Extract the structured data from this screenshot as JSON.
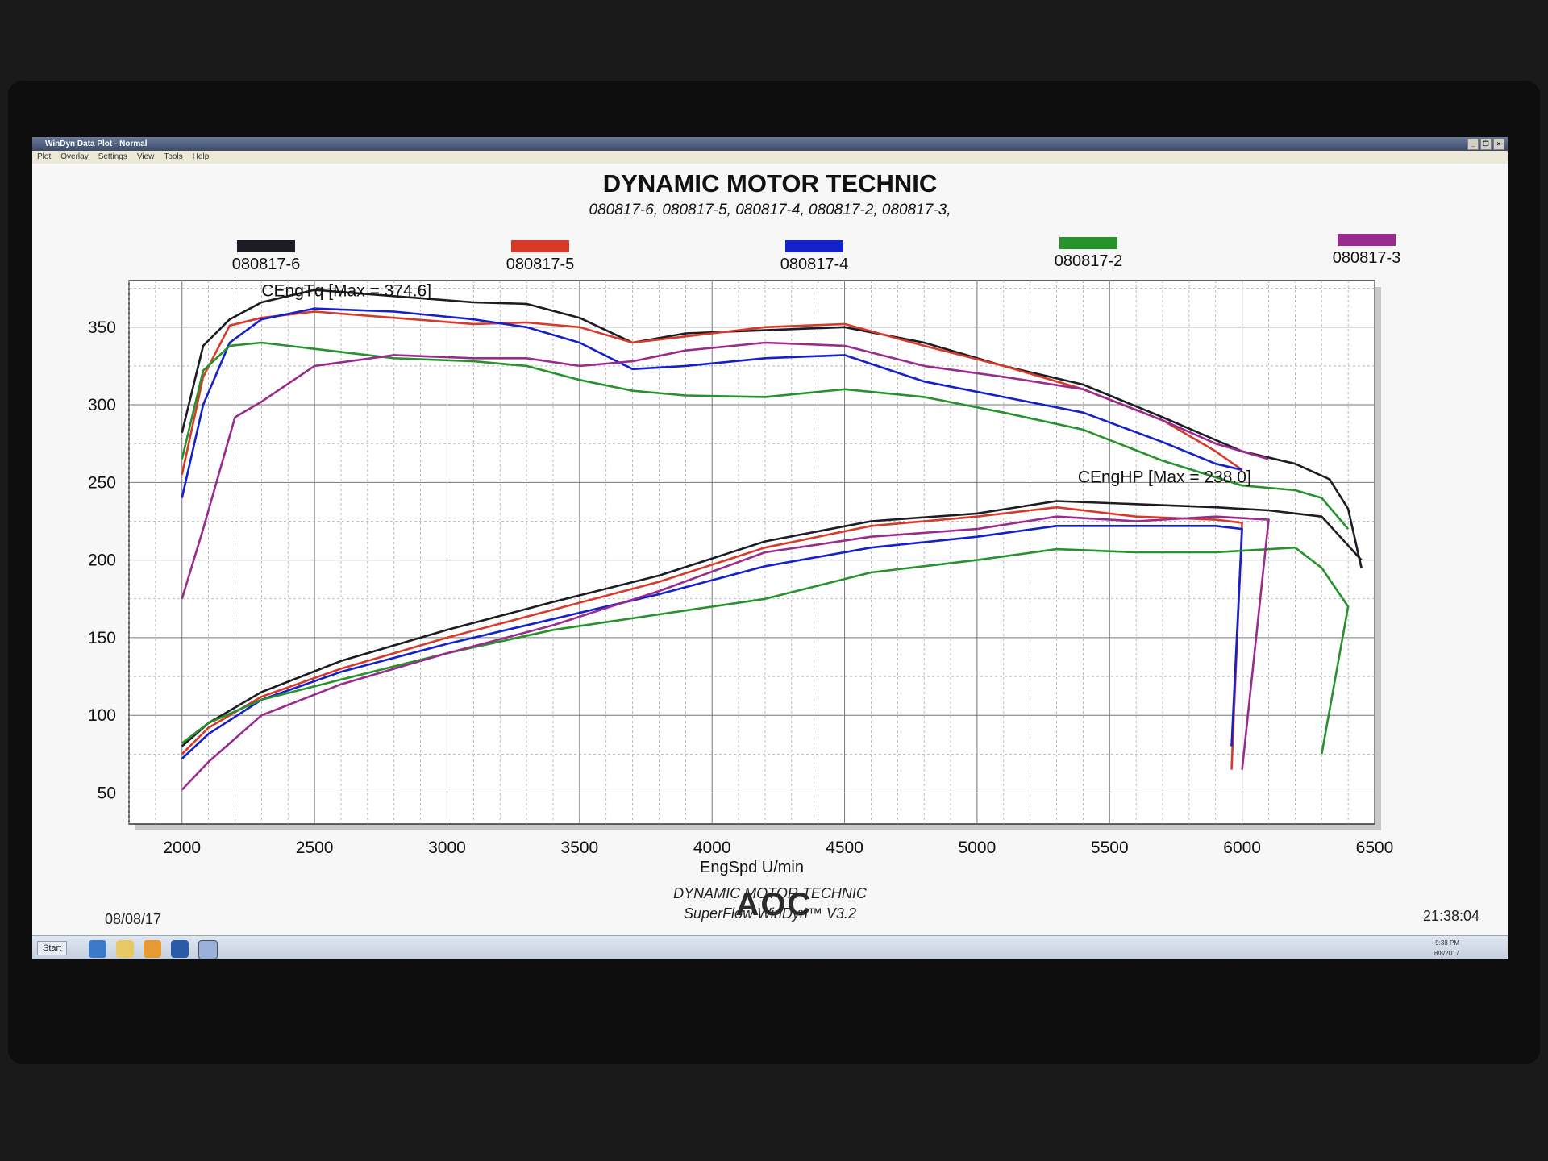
{
  "window": {
    "title": "WinDyn Data Plot - Normal",
    "menu": [
      "Plot",
      "Overlay",
      "Settings",
      "View",
      "Tools",
      "Help"
    ]
  },
  "footer": {
    "date": "08/08/17",
    "company": "DYNAMIC MOTOR TECHNIC",
    "software": "SuperFlow WinDyn™ V3.2",
    "time": "21:38:04"
  },
  "taskbar": {
    "start_label": "Start",
    "tray_time": "9:38 PM",
    "tray_date": "8/8/2017"
  },
  "monitor": {
    "brand": "AOC"
  },
  "chart_data": {
    "type": "line",
    "title": "DYNAMIC MOTOR TECHNIC",
    "subtitle": "080817-6, 080817-5, 080817-4, 080817-2, 080817-3,",
    "xlabel": "EngSpd U/min",
    "ylabel": "",
    "xlim": [
      1800,
      6500
    ],
    "ylim": [
      30,
      380
    ],
    "xticks": [
      2000,
      2500,
      3000,
      3500,
      4000,
      4500,
      5000,
      5500,
      6000,
      6500
    ],
    "yticks": [
      50,
      100,
      150,
      200,
      250,
      300,
      350
    ],
    "grid": true,
    "legend_position": "top",
    "annotations": [
      {
        "text": "CEngTq [Max = 374.6]",
        "x": 2300,
        "y": 370
      },
      {
        "text": "CEngHP [Max = 238.0]",
        "x": 5380,
        "y": 250
      }
    ],
    "series": [
      {
        "name": "080817-6",
        "color": "#1c1c24",
        "torque": {
          "x": [
            2000,
            2080,
            2180,
            2300,
            2500,
            2800,
            3100,
            3300,
            3500,
            3700,
            3900,
            4200,
            4500,
            4800,
            5100,
            5400,
            5700,
            6000,
            6200,
            6330,
            6400,
            6450
          ],
          "y": [
            282,
            338,
            355,
            366,
            374,
            370,
            366,
            365,
            356,
            340,
            346,
            348,
            350,
            340,
            325,
            313,
            292,
            270,
            262,
            252,
            233,
            195
          ]
        },
        "power": {
          "x": [
            2000,
            2100,
            2300,
            2600,
            3000,
            3400,
            3800,
            4200,
            4600,
            5000,
            5300,
            5600,
            5900,
            6100,
            6300,
            6450
          ],
          "y": [
            80,
            95,
            115,
            135,
            155,
            173,
            190,
            212,
            225,
            230,
            238,
            236,
            234,
            232,
            228,
            200
          ]
        }
      },
      {
        "name": "080817-5",
        "color": "#d83a2a",
        "torque": {
          "x": [
            2000,
            2080,
            2180,
            2300,
            2500,
            2800,
            3100,
            3300,
            3500,
            3700,
            3900,
            4200,
            4500,
            4800,
            5100,
            5400,
            5700,
            5900,
            6000
          ],
          "y": [
            255,
            318,
            351,
            356,
            360,
            356,
            352,
            353,
            350,
            340,
            344,
            350,
            352,
            338,
            325,
            310,
            290,
            270,
            258
          ]
        },
        "power": {
          "x": [
            2000,
            2100,
            2300,
            2600,
            3000,
            3400,
            3800,
            4200,
            4600,
            5000,
            5300,
            5600,
            5900,
            6000,
            5960
          ],
          "y": [
            75,
            92,
            112,
            130,
            150,
            168,
            186,
            208,
            222,
            228,
            234,
            228,
            226,
            224,
            65
          ]
        }
      },
      {
        "name": "080817-4",
        "color": "#1420c8",
        "torque": {
          "x": [
            2000,
            2080,
            2180,
            2300,
            2500,
            2800,
            3100,
            3300,
            3500,
            3700,
            3900,
            4200,
            4500,
            4800,
            5100,
            5400,
            5700,
            5900,
            6000
          ],
          "y": [
            240,
            300,
            340,
            355,
            362,
            360,
            355,
            350,
            340,
            323,
            325,
            330,
            332,
            315,
            305,
            295,
            276,
            262,
            258
          ]
        },
        "power": {
          "x": [
            2000,
            2100,
            2300,
            2600,
            3000,
            3400,
            3800,
            4200,
            4600,
            5000,
            5300,
            5600,
            5900,
            6000,
            5960
          ],
          "y": [
            72,
            88,
            110,
            128,
            146,
            162,
            178,
            196,
            208,
            215,
            222,
            222,
            222,
            220,
            80
          ]
        }
      },
      {
        "name": "080817-2",
        "color": "#27922c",
        "torque": {
          "x": [
            2000,
            2080,
            2180,
            2300,
            2500,
            2800,
            3100,
            3300,
            3500,
            3700,
            3900,
            4200,
            4500,
            4800,
            5100,
            5400,
            5700,
            6000,
            6200,
            6300,
            6400
          ],
          "y": [
            265,
            322,
            338,
            340,
            336,
            330,
            328,
            325,
            316,
            309,
            306,
            305,
            310,
            305,
            295,
            284,
            264,
            248,
            245,
            240,
            220
          ]
        },
        "power": {
          "x": [
            2000,
            2100,
            2300,
            2600,
            3000,
            3400,
            3800,
            4200,
            4600,
            5000,
            5300,
            5600,
            5900,
            6200,
            6300,
            6400,
            6300
          ],
          "y": [
            82,
            95,
            110,
            123,
            140,
            155,
            165,
            175,
            192,
            200,
            207,
            205,
            205,
            208,
            195,
            170,
            75
          ]
        }
      },
      {
        "name": "080817-3",
        "color": "#9a2b8e",
        "torque": {
          "x": [
            2000,
            2080,
            2200,
            2300,
            2500,
            2800,
            3100,
            3300,
            3500,
            3700,
            3900,
            4200,
            4500,
            4800,
            5100,
            5400,
            5700,
            5900,
            6100
          ],
          "y": [
            175,
            220,
            292,
            302,
            325,
            332,
            330,
            330,
            325,
            328,
            335,
            340,
            338,
            325,
            318,
            310,
            290,
            275,
            265
          ]
        },
        "power": {
          "x": [
            2000,
            2100,
            2300,
            2600,
            3000,
            3400,
            3800,
            4200,
            4600,
            5000,
            5300,
            5600,
            5900,
            6100,
            6000
          ],
          "y": [
            52,
            70,
            100,
            120,
            140,
            158,
            180,
            205,
            215,
            220,
            228,
            225,
            228,
            226,
            65
          ]
        }
      }
    ]
  }
}
